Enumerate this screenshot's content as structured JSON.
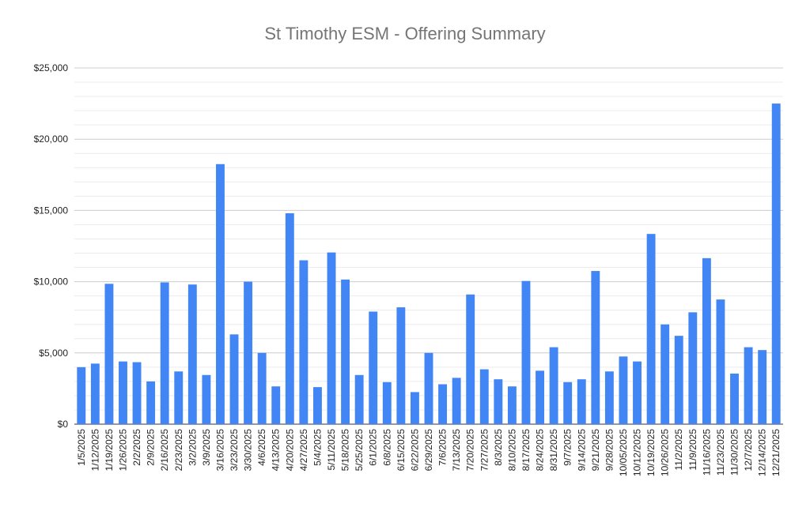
{
  "chart_data": {
    "type": "bar",
    "title": "St Timothy ESM - Offering Summary",
    "xlabel": "",
    "ylabel": "",
    "ylim": [
      0,
      25000
    ],
    "y_ticks": [
      "$0",
      "$5,000",
      "$10,000",
      "$15,000",
      "$20,000",
      "$25,000"
    ],
    "y_tick_values": [
      0,
      5000,
      10000,
      15000,
      20000,
      25000
    ],
    "grid": true,
    "legend": "none",
    "bar_color": "#4285f4",
    "categories": [
      "1/5/2025",
      "1/12/2025",
      "1/19/2025",
      "1/26/2025",
      "2/2/2025",
      "2/9/2025",
      "2/16/2025",
      "2/23/2025",
      "3/2/2025",
      "3/9/2025",
      "3/16/2025",
      "3/23/2025",
      "3/30/2025",
      "4/6/2025",
      "4/13/2025",
      "4/20/2025",
      "4/27/2025",
      "5/4/2025",
      "5/11/2025",
      "5/18/2025",
      "5/25/2025",
      "6/1/2025",
      "6/8/2025",
      "6/15/2025",
      "6/22/2025",
      "6/29/2025",
      "7/6/2025",
      "7/13/2025",
      "7/20/2025",
      "7/27/2025",
      "8/3/2025",
      "8/10/2025",
      "8/17/2025",
      "8/24/2025",
      "8/31/2025",
      "9/7/2025",
      "9/14/2025",
      "9/21/2025",
      "9/28/2025",
      "10/05/2025",
      "10/12/2025",
      "10/19/2025",
      "10/26/2025",
      "11/2/2025",
      "11/9/2025",
      "11/16/2025",
      "11/23/2025",
      "11/30/2025",
      "12/7/2025",
      "12/14/2025",
      "12/21/2025"
    ],
    "values": [
      4000,
      4250,
      9850,
      4400,
      4350,
      3000,
      9950,
      3700,
      9800,
      3450,
      18250,
      6300,
      10000,
      5000,
      2650,
      14800,
      11500,
      2600,
      12050,
      10150,
      3450,
      7900,
      2950,
      8200,
      2250,
      5000,
      2800,
      3250,
      9100,
      3850,
      3150,
      2650,
      10050,
      3750,
      5400,
      2950,
      3150,
      10750,
      3700,
      4750,
      4400,
      13350,
      7000,
      6200,
      7850,
      11650,
      8750,
      3550,
      5400,
      5200,
      22500
    ]
  }
}
